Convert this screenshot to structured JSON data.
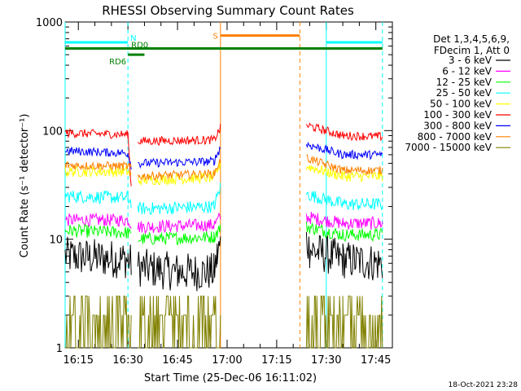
{
  "chart_data": {
    "type": "line",
    "title": "RHESSI Observing Summary Count Rates",
    "xlabel": "Start Time (25-Dec-06 16:11:02)",
    "ylabel": "Count Rate (s⁻¹ detector⁻¹)",
    "y_scale": "log",
    "ylim": [
      1,
      1000
    ],
    "y_tick_labels": [
      "1",
      "10",
      "100",
      "1000"
    ],
    "x_tick_labels": [
      "16:15",
      "16:30",
      "16:45",
      "17:00",
      "17:15",
      "17:30",
      "17:45"
    ],
    "legend_placement": "right",
    "legend_header": [
      "Det 1,3,4,5,6,9,",
      "FDecim 1, Att 0"
    ],
    "footer_date": "18-Oct-2021 23:28",
    "gap": [
      "16:58",
      "17:24"
    ],
    "series": [
      {
        "name": "3 - 6 keV",
        "color": "#000000",
        "segments": [
          [
            [
              "16:11",
              7
            ],
            [
              "16:30",
              6.5
            ],
            [
              "16:31",
              6
            ]
          ],
          [
            [
              "16:33",
              5.5
            ],
            [
              "16:45",
              5
            ],
            [
              "16:56",
              5
            ],
            [
              "16:57",
              7
            ],
            [
              "16:58",
              9
            ]
          ],
          [
            [
              "17:24",
              10
            ],
            [
              "17:25",
              8
            ],
            [
              "17:35",
              6.5
            ],
            [
              "17:47",
              6
            ]
          ]
        ]
      },
      {
        "name": "6 - 12 keV",
        "color": "#ff00ff",
        "segments": [
          [
            [
              "16:11",
              15
            ],
            [
              "16:30",
              15
            ],
            [
              "16:31",
              14
            ]
          ],
          [
            [
              "16:33",
              13
            ],
            [
              "16:56",
              13.5
            ],
            [
              "16:58",
              16
            ]
          ],
          [
            [
              "17:24",
              16
            ],
            [
              "17:35",
              14
            ],
            [
              "17:47",
              14
            ]
          ]
        ]
      },
      {
        "name": "12 - 25 keV",
        "color": "#00ff00",
        "segments": [
          [
            [
              "16:11",
              12
            ],
            [
              "16:30",
              11.5
            ],
            [
              "16:31",
              10.5
            ]
          ],
          [
            [
              "16:33",
              10
            ],
            [
              "16:56",
              10.5
            ],
            [
              "16:58",
              13
            ]
          ],
          [
            [
              "17:24",
              13
            ],
            [
              "17:35",
              11
            ],
            [
              "17:47",
              11
            ]
          ]
        ]
      },
      {
        "name": "25 - 50 keV",
        "color": "#00ffff",
        "segments": [
          [
            [
              "16:11",
              25
            ],
            [
              "16:30",
              24
            ],
            [
              "16:31",
              22
            ]
          ],
          [
            [
              "16:33",
              19
            ],
            [
              "16:56",
              20
            ],
            [
              "16:58",
              30
            ]
          ],
          [
            [
              "17:24",
              26
            ],
            [
              "17:35",
              21
            ],
            [
              "17:47",
              21
            ]
          ]
        ]
      },
      {
        "name": "50 - 100 keV",
        "color": "#ffff00",
        "segments": [
          [
            [
              "16:11",
              42
            ],
            [
              "16:30",
              42
            ],
            [
              "16:31",
              38
            ]
          ],
          [
            [
              "16:33",
              35
            ],
            [
              "16:56",
              37
            ],
            [
              "16:58",
              50
            ]
          ],
          [
            [
              "17:24",
              47
            ],
            [
              "17:35",
              38
            ],
            [
              "17:47",
              38
            ]
          ]
        ]
      },
      {
        "name": "100 - 300 keV",
        "color": "#ff0000",
        "segments": [
          [
            [
              "16:11",
              95
            ],
            [
              "16:30",
              92
            ],
            [
              "16:31",
              30
            ]
          ],
          [
            [
              "16:33",
              80
            ],
            [
              "16:56",
              82
            ],
            [
              "16:58",
              105
            ]
          ],
          [
            [
              "17:24",
              112
            ],
            [
              "17:35",
              90
            ],
            [
              "17:47",
              88
            ]
          ]
        ]
      },
      {
        "name": "300 - 800 keV",
        "color": "#0000ff",
        "segments": [
          [
            [
              "16:11",
              65
            ],
            [
              "16:30",
              62
            ],
            [
              "16:31",
              48
            ]
          ],
          [
            [
              "16:33",
              50
            ],
            [
              "16:56",
              52
            ],
            [
              "16:58",
              70
            ]
          ],
          [
            [
              "17:24",
              75
            ],
            [
              "17:35",
              60
            ],
            [
              "17:47",
              60
            ]
          ]
        ]
      },
      {
        "name": "800 - 7000 keV",
        "color": "#ff8000",
        "segments": [
          [
            [
              "16:11",
              48
            ],
            [
              "16:30",
              47
            ],
            [
              "16:31",
              45
            ]
          ],
          [
            [
              "16:33",
              38
            ],
            [
              "16:56",
              40
            ],
            [
              "16:58",
              53
            ]
          ],
          [
            [
              "17:24",
              56
            ],
            [
              "17:35",
              43
            ],
            [
              "17:47",
              43
            ]
          ]
        ]
      },
      {
        "name": "7000 - 15000 keV",
        "color": "#808000",
        "segments": [
          [
            [
              "16:11",
              2
            ],
            [
              "16:30",
              1.9
            ],
            [
              "16:31",
              1.7
            ]
          ],
          [
            [
              "16:33",
              1.6
            ],
            [
              "16:56",
              1.6
            ],
            [
              "16:58",
              1.8
            ]
          ],
          [
            [
              "17:24",
              2
            ],
            [
              "17:35",
              1.6
            ],
            [
              "17:47",
              1.6
            ]
          ]
        ]
      }
    ],
    "flag_bars": [
      {
        "label": "N",
        "color": "#00ffff",
        "y": 650,
        "ranges": [
          [
            "16:11",
            "16:30"
          ],
          [
            "17:30",
            "17:47"
          ]
        ]
      },
      {
        "label": "S",
        "color": "#ff8000",
        "y": 750,
        "ranges": [
          [
            "16:58",
            "17:22"
          ]
        ]
      },
      {
        "label": "RD0",
        "color": "#008000",
        "y": 570,
        "ranges": [
          [
            "16:11",
            "17:47"
          ]
        ]
      },
      {
        "label": "RD6",
        "color": "#008000",
        "y": 500,
        "ranges": [
          [
            "16:30",
            "16:35"
          ]
        ]
      }
    ],
    "vertical_lines": [
      {
        "x": "16:11",
        "color": "#00ffff",
        "style": "solid"
      },
      {
        "x": "16:30",
        "color": "#00ffff",
        "style": "dashed"
      },
      {
        "x": "16:58",
        "color": "#ff8000",
        "style": "solid"
      },
      {
        "x": "17:22",
        "color": "#ff8000",
        "style": "dashed"
      },
      {
        "x": "17:30",
        "color": "#00ffff",
        "style": "solid"
      },
      {
        "x": "17:47",
        "color": "#00ffff",
        "style": "dashed"
      }
    ]
  }
}
